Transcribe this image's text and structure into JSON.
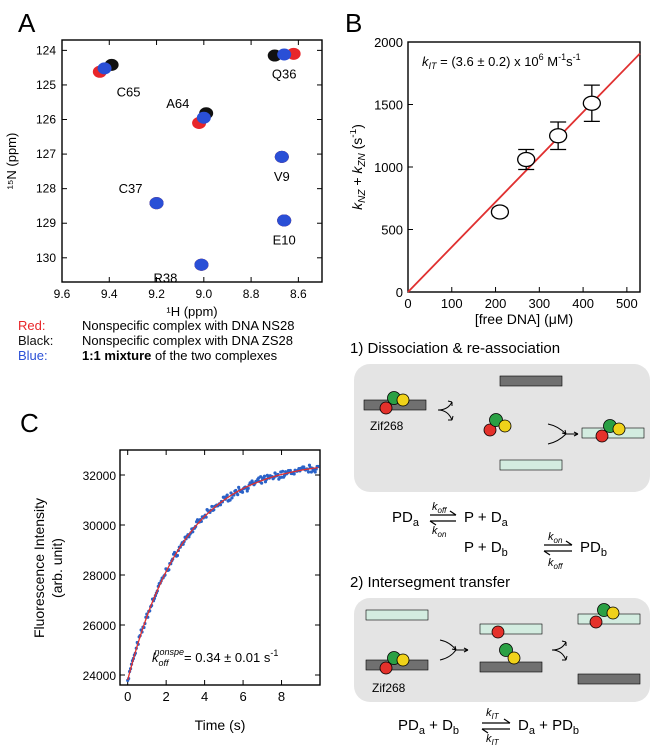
{
  "panels": {
    "A": "A",
    "B": "B",
    "C": "C"
  },
  "colors": {
    "red": "#e8262a",
    "black": "#111111",
    "blue": "#2a4fd6",
    "fit_line": "#e03030",
    "scatter_point": "#2a62c8",
    "box_fill": "#e4e4e4",
    "dna_gray": "#707070",
    "dna_green": "#d3ece0",
    "zf_red": "#e4312b",
    "zf_green": "#2aa044",
    "zf_yellow": "#f0d21a"
  },
  "legend_a": [
    {
      "key": "Red:",
      "text": "Nonspecific complex with DNA NS28",
      "bold_prefix": "",
      "color": "#e8262a"
    },
    {
      "key": "Black:",
      "text": "Nonspecific complex with DNA ZS28",
      "bold_prefix": "",
      "color": "#111111"
    },
    {
      "key": "Blue:",
      "text": " of the two complexes",
      "bold_prefix": "1:1 mixture",
      "color": "#2a4fd6"
    }
  ],
  "chart_data": [
    {
      "id": "A",
      "type": "scatter",
      "title": "",
      "xlabel": "¹H (ppm)",
      "ylabel": "¹⁵N (ppm)",
      "xlim": [
        9.6,
        8.5
      ],
      "ylim": [
        130.7,
        123.7
      ],
      "x_reversed": true,
      "y_reversed": true,
      "xticks": [
        9.6,
        9.4,
        9.2,
        9.0,
        8.8,
        8.6
      ],
      "xtick_labels": [
        "9.6",
        "9.4",
        "9.2",
        "9.0",
        "8.8",
        "8.6"
      ],
      "yticks": [
        124,
        125,
        126,
        127,
        128,
        129,
        130
      ],
      "ytick_labels": [
        "124",
        "125",
        "126",
        "127",
        "128",
        "129",
        "130"
      ],
      "peaks": [
        {
          "label": "Q36",
          "label_pos": "below",
          "red": [
            8.62,
            124.1
          ],
          "black": [
            8.7,
            124.15
          ],
          "blue": [
            8.66,
            124.12
          ]
        },
        {
          "label": "C65",
          "label_pos": "below-right",
          "red": [
            9.44,
            124.62
          ],
          "black": [
            9.39,
            124.42
          ],
          "blue": [
            9.42,
            124.52
          ]
        },
        {
          "label": "A64",
          "label_pos": "above-left",
          "red": [
            9.02,
            126.1
          ],
          "black": [
            8.99,
            125.82
          ],
          "blue": [
            9.0,
            125.95
          ]
        },
        {
          "label": "V9",
          "label_pos": "below",
          "red": [
            8.67,
            127.08
          ],
          "black": [
            8.67,
            127.08
          ],
          "blue": [
            8.67,
            127.08
          ]
        },
        {
          "label": "C37",
          "label_pos": "above-left",
          "red": [
            9.2,
            128.42
          ],
          "black": [
            9.2,
            128.42
          ],
          "blue": [
            9.2,
            128.42
          ]
        },
        {
          "label": "E10",
          "label_pos": "below",
          "red": [
            8.66,
            128.92
          ],
          "black": [
            8.66,
            128.92
          ],
          "blue": [
            8.66,
            128.92
          ]
        },
        {
          "label": "R38",
          "label_pos": "left",
          "red": [
            9.01,
            130.2
          ],
          "black": [
            9.01,
            130.2
          ],
          "blue": [
            9.01,
            130.2
          ]
        }
      ]
    },
    {
      "id": "B",
      "type": "scatter",
      "title": "",
      "annotation": {
        "base": "k",
        "sub": "IT",
        "text": " = (3.6 ± 0.2) x 10",
        "sup1": "6",
        "unit": " M",
        "sup2": "-1",
        "unit2": "s",
        "sup3": "-1"
      },
      "xlabel": "[free DNA] (μM)",
      "ylabel": {
        "k1": "k",
        "s1": "NZ",
        "mid": " + ",
        "k2": "k",
        "s2": "ZN",
        "unit": " (s",
        "sup": "-1",
        "end": ")"
      },
      "xlim": [
        0,
        530
      ],
      "ylim": [
        0,
        2000
      ],
      "xticks": [
        0,
        100,
        200,
        300,
        400,
        500
      ],
      "xtick_labels": [
        "0",
        "100",
        "200",
        "300",
        "400",
        "500"
      ],
      "yticks": [
        0,
        500,
        1000,
        1500,
        2000
      ],
      "ytick_labels": [
        "0",
        "500",
        "1000",
        "1500",
        "2000"
      ],
      "points": [
        {
          "x": 210,
          "y": 640,
          "err": 30
        },
        {
          "x": 270,
          "y": 1060,
          "err": 80
        },
        {
          "x": 343,
          "y": 1250,
          "err": 110
        },
        {
          "x": 420,
          "y": 1510,
          "err": 145
        }
      ],
      "fit": {
        "slope": 3.6,
        "intercept": 0
      }
    },
    {
      "id": "C",
      "type": "scatter",
      "title": "",
      "annotation": {
        "base": "k",
        "sub": "off",
        "sup": "nonspe",
        "text": "= 0.34 ± 0.01 s",
        "sup2": "-1"
      },
      "xlabel": "Time (s)",
      "ylabel": "Fluorescence Intensity (arb. unit)",
      "ylabel_lines": [
        "Fluorescence Intensity",
        "(arb. unit)"
      ],
      "xlim": [
        -0.4,
        10.0
      ],
      "ylim": [
        23600,
        33000
      ],
      "xticks": [
        0,
        2,
        4,
        6,
        8
      ],
      "xtick_labels": [
        "0",
        "2",
        "4",
        "6",
        "8"
      ],
      "yticks": [
        24000,
        26000,
        28000,
        30000,
        32000
      ],
      "ytick_labels": [
        "24000",
        "26000",
        "28000",
        "30000",
        "32000"
      ],
      "fit": {
        "y0": 23800,
        "amplitude": 8800,
        "rate": 0.34
      },
      "samples": {
        "t_start": 0.0,
        "t_end": 9.9,
        "n": 200,
        "noise": 180
      }
    }
  ],
  "schemes": {
    "s1_title": "1) Dissociation & re-association",
    "s2_title": "2) Intersegment transfer",
    "protein_label": "Zif268",
    "eq1": {
      "left": "PD",
      "left_sub": "a",
      "k_top": "k",
      "k_top_sub": "off",
      "k_bottom": "k",
      "k_bottom_sub": "on",
      "right": "P + D",
      "right_sub": "a"
    },
    "eq2": {
      "left": "P + D",
      "left_sub": "b",
      "k_top": "k",
      "k_top_sub": "on",
      "k_bottom": "k",
      "k_bottom_sub": "off",
      "right": "PD",
      "right_sub": "b"
    },
    "eq3": {
      "l1": "PD",
      "l1_sub": "a",
      "l2": " + D",
      "l2_sub": "b",
      "k_top": "k",
      "k_top_sub": "IT",
      "k_bottom": "k",
      "k_bottom_sub": "IT",
      "r1": "D",
      "r1_sub": "a",
      "r2": " + PD",
      "r2_sub": "b"
    }
  }
}
